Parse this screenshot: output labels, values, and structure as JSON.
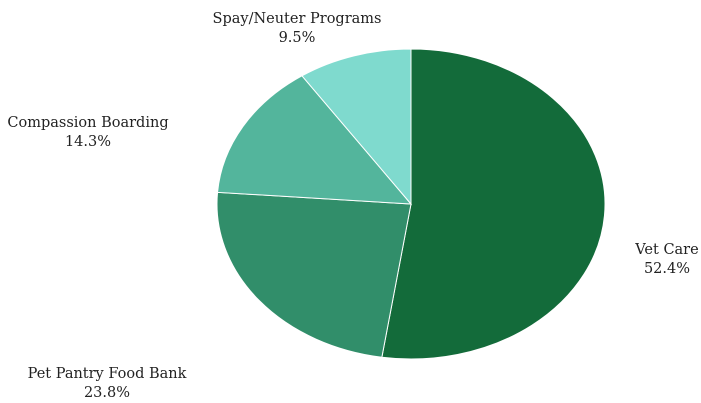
{
  "chart_data": {
    "type": "pie",
    "title": "",
    "slices": [
      {
        "label": "Vet Care",
        "value": 52.4,
        "value_label": "52.4%",
        "color": "#136b3a"
      },
      {
        "label": "Pet Pantry Food Bank",
        "value": 23.8,
        "value_label": "23.8%",
        "color": "#318e6a"
      },
      {
        "label": "Compassion Boarding",
        "value": 14.3,
        "value_label": "14.3%",
        "color": "#53b59c"
      },
      {
        "label": "Spay/Neuter Programs",
        "value": 9.5,
        "value_label": "9.5%",
        "color": "#7fdace"
      }
    ],
    "start_angle": "12 o'clock",
    "direction": "clockwise",
    "legend": "none"
  }
}
